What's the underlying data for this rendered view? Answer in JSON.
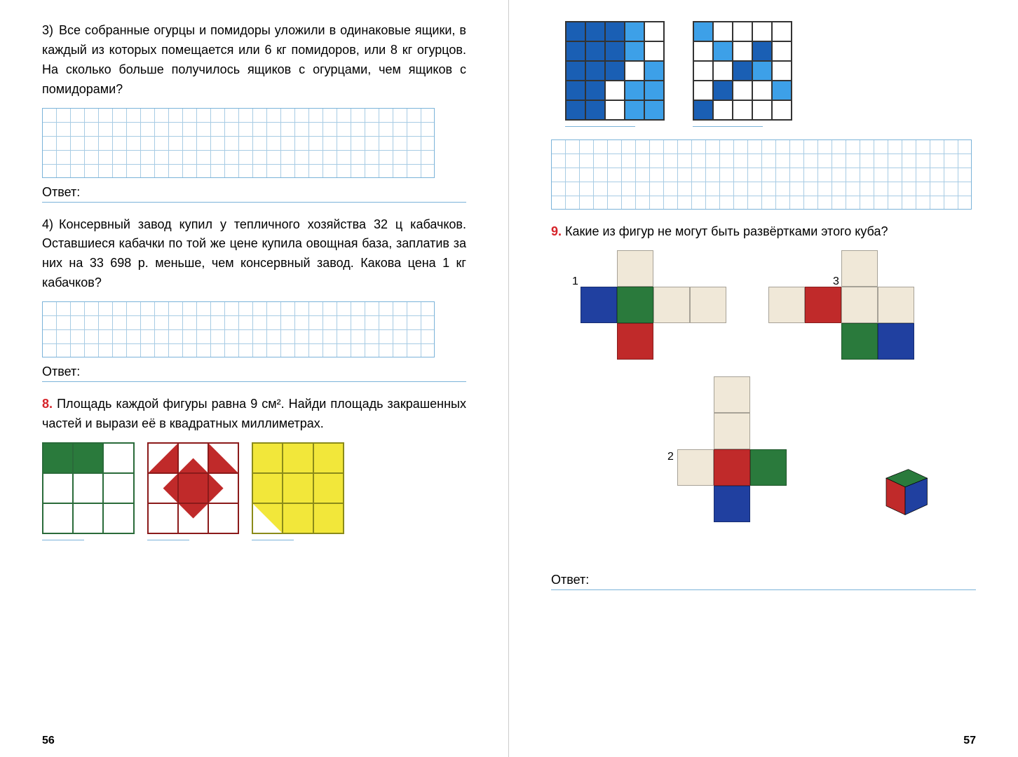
{
  "left": {
    "q3": {
      "label": "3)",
      "text": "Все собранные огурцы и помидоры уложили в одинаковые ящики, в каждый из которых помещается или 6 кг помидоров, или 8 кг огурцов. На сколько больше получилось ящиков с огурцами, чем ящиков с помидорами?"
    },
    "q4": {
      "label": "4)",
      "text": "Консервный завод купил у тепличного хозяйства 32 ц кабачков. Оставшиеся кабачки по той же цене купила овощная база, заплатив за них на 33 698 р. меньше, чем консервный завод. Какова цена 1 кг кабачков?"
    },
    "q8": {
      "num": "8.",
      "text": "Площадь каждой фигуры равна 9 см². Найди площадь закрашенных частей и вырази её в квадратных миллиметрах."
    },
    "answer": "Ответ:",
    "page_num": "56",
    "grid1": {
      "rows": 5,
      "cols": 28,
      "cell": 20
    },
    "grid2": {
      "rows": 4,
      "cols": 28,
      "cell": 20
    },
    "fig8": {
      "cell": 24,
      "green_border": "#2a6b3a",
      "red_border": "#8b1a1a",
      "yellow_border": "#8b8b1a",
      "colors": {
        "g": "#2a7a3c",
        "r": "#c02a2a",
        "y": "#f2e73a",
        "w": "#ffffff"
      },
      "fig_a": {
        "rows": 3,
        "cols": 3,
        "fill": [
          "g",
          "g",
          "w",
          "w",
          "w",
          "w",
          "w",
          "w",
          "w"
        ]
      },
      "fig_b": {
        "rows": 3,
        "cols": 3,
        "half": true
      },
      "fig_c": {
        "rows": 3,
        "cols": 3,
        "fill": [
          "y",
          "y",
          "y",
          "y",
          "y",
          "y",
          "y",
          "y",
          "y"
        ],
        "white_half": [
          6
        ]
      }
    }
  },
  "right": {
    "q9": {
      "num": "9.",
      "text": "Какие из фигур не могут быть развёртками этого куба?"
    },
    "answer": "Ответ:",
    "page_num": "57",
    "grid": {
      "rows": 5,
      "cols": 30,
      "cell": 20
    },
    "blue_colors": {
      "b": "#1a5fb4",
      "lb": "#3da0e8",
      "w": "#ffffff"
    },
    "blue_a": [
      "b",
      "b",
      "b",
      "lb",
      "w",
      "b",
      "b",
      "b",
      "lb",
      "w",
      "b",
      "b",
      "b",
      "w",
      "lb",
      "b",
      "b",
      "w",
      "lb",
      "lb",
      "b",
      "b",
      "w",
      "lb",
      "lb"
    ],
    "blue_b": [
      "lb",
      "w",
      "w",
      "w",
      "w",
      "w",
      "lb",
      "w",
      "b",
      "w",
      "w",
      "w",
      "b",
      "lb",
      "w",
      "w",
      "b",
      "w",
      "w",
      "lb",
      "b",
      "w",
      "w",
      "w",
      "w"
    ],
    "net_cell": 52,
    "net_colors": {
      "cr": "#f0e8d8",
      "bl": "#2040a0",
      "gn": "#2a7a3c",
      "rd": "#c02a2a"
    },
    "net1": {
      "label": "1",
      "cells": [
        {
          "r": 0,
          "c": 1,
          "col": "cr"
        },
        {
          "r": 1,
          "c": 0,
          "col": "bl"
        },
        {
          "r": 1,
          "c": 1,
          "col": "gn"
        },
        {
          "r": 1,
          "c": 2,
          "col": "cr"
        },
        {
          "r": 1,
          "c": 3,
          "col": "cr"
        },
        {
          "r": 2,
          "c": 1,
          "col": "rd"
        }
      ]
    },
    "net3": {
      "label": "3",
      "cells": [
        {
          "r": 0,
          "c": 2,
          "col": "cr"
        },
        {
          "r": 1,
          "c": 0,
          "col": "cr"
        },
        {
          "r": 1,
          "c": 1,
          "col": "rd"
        },
        {
          "r": 1,
          "c": 2,
          "col": "cr"
        },
        {
          "r": 1,
          "c": 3,
          "col": "cr"
        },
        {
          "r": 2,
          "c": 2,
          "col": "gn"
        },
        {
          "r": 2,
          "c": 3,
          "col": "bl"
        }
      ]
    },
    "net2": {
      "label": "2",
      "cells": [
        {
          "r": 0,
          "c": 1,
          "col": "cr"
        },
        {
          "r": 1,
          "c": 1,
          "col": "cr"
        },
        {
          "r": 2,
          "c": 0,
          "col": "cr"
        },
        {
          "r": 2,
          "c": 1,
          "col": "rd"
        },
        {
          "r": 2,
          "c": 2,
          "col": "gn"
        },
        {
          "r": 3,
          "c": 1,
          "col": "bl"
        }
      ]
    },
    "cube": {
      "top": "#2a7a3c",
      "front": "#c02a2a",
      "side": "#2040a0"
    }
  }
}
